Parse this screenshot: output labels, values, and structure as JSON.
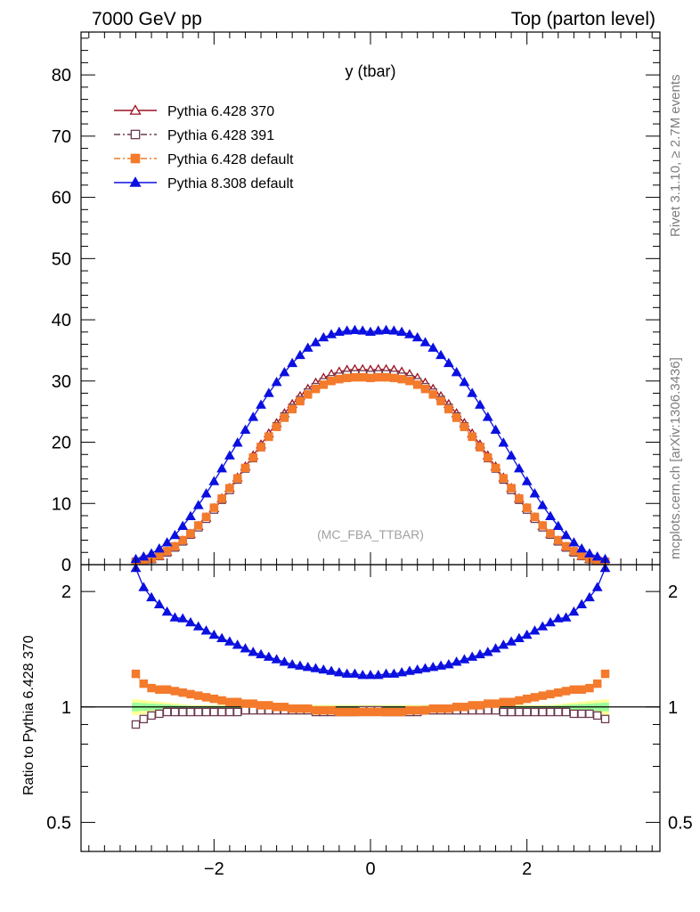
{
  "header": {
    "left_title": "7000 GeV pp",
    "right_title": "Top (parton level)"
  },
  "side_labels": {
    "rivet": "Rivet 3.1.10, ≥ 2.7M events",
    "mcplots": "mcplots.cern.ch [arXiv:1306.3436]"
  },
  "chart_data": [
    {
      "type": "line",
      "title": "y (tbar)",
      "annotation": "(MC_FBA_TTBAR)",
      "xlabel": "",
      "ylabel": "",
      "xlim": [
        -3.7,
        3.7
      ],
      "ylim": [
        0,
        87
      ],
      "x_ticks": [
        "−2",
        "0",
        "2"
      ],
      "y_ticks": [
        "0",
        "10",
        "20",
        "30",
        "40",
        "50",
        "60",
        "70",
        "80"
      ],
      "legend_position": "top-left",
      "x": [
        -3.0,
        -2.9,
        -2.8,
        -2.7,
        -2.6,
        -2.5,
        -2.4,
        -2.3,
        -2.2,
        -2.1,
        -2.0,
        -1.9,
        -1.8,
        -1.7,
        -1.6,
        -1.5,
        -1.4,
        -1.3,
        -1.2,
        -1.1,
        -1.0,
        -0.9,
        -0.8,
        -0.7,
        -0.6,
        -0.5,
        -0.4,
        -0.3,
        -0.2,
        -0.1,
        0.0,
        0.1,
        0.2,
        0.3,
        0.4,
        0.5,
        0.6,
        0.7,
        0.8,
        0.9,
        1.0,
        1.1,
        1.2,
        1.3,
        1.4,
        1.5,
        1.6,
        1.7,
        1.8,
        1.9,
        2.0,
        2.1,
        2.2,
        2.3,
        2.4,
        2.5,
        2.6,
        2.7,
        2.8,
        2.9,
        3.0
      ],
      "series": [
        {
          "name": "Pythia 6.428 370",
          "color": "#9b1020",
          "marker": "open-triangle",
          "line": "solid",
          "values": [
            0.4,
            0.6,
            0.9,
            1.4,
            2.1,
            2.9,
            3.9,
            5.0,
            6.3,
            7.7,
            9.2,
            10.8,
            12.5,
            14.2,
            16.0,
            17.8,
            19.6,
            21.4,
            23.1,
            24.7,
            26.2,
            27.5,
            28.7,
            29.7,
            30.5,
            31.1,
            31.5,
            31.8,
            31.9,
            31.9,
            31.8,
            31.9,
            31.9,
            31.8,
            31.5,
            31.1,
            30.5,
            29.7,
            28.7,
            27.5,
            26.2,
            24.7,
            23.1,
            21.4,
            19.6,
            17.8,
            16.0,
            14.2,
            12.5,
            10.8,
            9.2,
            7.7,
            6.3,
            5.0,
            3.9,
            2.9,
            2.1,
            1.4,
            0.9,
            0.6,
            0.4
          ]
        },
        {
          "name": "Pythia 6.428 391",
          "color": "#6e3a50",
          "marker": "open-square",
          "line": "dash-dot",
          "values": [
            0.4,
            0.6,
            0.9,
            1.4,
            2.0,
            2.8,
            3.8,
            4.9,
            6.1,
            7.5,
            9.0,
            10.6,
            12.2,
            13.9,
            15.7,
            17.4,
            19.2,
            20.9,
            22.6,
            24.2,
            25.6,
            26.9,
            28.1,
            29.0,
            29.8,
            30.3,
            30.7,
            31.0,
            31.1,
            31.1,
            31.0,
            31.1,
            31.1,
            31.0,
            30.7,
            30.3,
            29.8,
            29.0,
            28.1,
            26.9,
            25.6,
            24.2,
            22.6,
            20.9,
            19.2,
            17.4,
            15.7,
            13.9,
            12.2,
            10.6,
            9.0,
            7.5,
            6.1,
            4.9,
            3.8,
            2.8,
            2.0,
            1.4,
            0.9,
            0.6,
            0.4
          ]
        },
        {
          "name": "Pythia 6.428 default",
          "color": "#f47a2c",
          "marker": "filled-square",
          "line": "dash-dot",
          "values": [
            0.5,
            0.7,
            1.0,
            1.5,
            2.2,
            3.0,
            4.0,
            5.1,
            6.4,
            7.8,
            9.3,
            10.8,
            12.5,
            14.1,
            15.8,
            17.5,
            19.2,
            20.9,
            22.5,
            24.0,
            25.4,
            26.7,
            27.8,
            28.7,
            29.4,
            30.0,
            30.3,
            30.5,
            30.6,
            30.6,
            30.5,
            30.6,
            30.6,
            30.5,
            30.3,
            30.0,
            29.4,
            28.7,
            27.8,
            26.7,
            25.4,
            24.0,
            22.5,
            20.9,
            19.2,
            17.5,
            15.8,
            14.1,
            12.5,
            10.8,
            9.3,
            7.8,
            6.4,
            5.1,
            4.0,
            3.0,
            2.2,
            1.5,
            1.0,
            0.7,
            0.5
          ]
        },
        {
          "name": "Pythia 8.308 default",
          "color": "#0b10e0",
          "marker": "filled-triangle",
          "line": "solid",
          "values": [
            0.9,
            1.3,
            1.8,
            2.6,
            3.6,
            4.8,
            6.3,
            7.9,
            9.7,
            11.6,
            13.6,
            15.7,
            17.8,
            19.9,
            22.0,
            24.1,
            26.1,
            28.0,
            29.8,
            31.4,
            32.9,
            34.2,
            35.4,
            36.3,
            37.1,
            37.6,
            38.0,
            38.2,
            38.3,
            38.2,
            38.0,
            38.2,
            38.3,
            38.2,
            38.0,
            37.6,
            37.1,
            36.3,
            35.4,
            34.2,
            32.9,
            31.4,
            29.8,
            28.0,
            26.1,
            24.1,
            22.0,
            19.9,
            17.8,
            15.7,
            13.6,
            11.6,
            9.7,
            7.9,
            6.3,
            4.8,
            3.6,
            2.6,
            1.8,
            1.3,
            0.9
          ]
        }
      ]
    },
    {
      "type": "line",
      "title": "",
      "ylabel": "Ratio to Pythia 6.428 370",
      "xlim": [
        -3.7,
        3.7
      ],
      "ylim": [
        0.42,
        2.35
      ],
      "y_scale": "log",
      "x_ticks": [
        "−2",
        "0",
        "2"
      ],
      "y_ticks": [
        "0.5",
        "1",
        "2"
      ],
      "series": [
        {
          "name": "Pythia 6.428 391",
          "values": [
            0.9,
            0.93,
            0.95,
            0.96,
            0.97,
            0.97,
            0.97,
            0.97,
            0.97,
            0.97,
            0.97,
            0.97,
            0.97,
            0.97,
            0.98,
            0.98,
            0.98,
            0.98,
            0.98,
            0.98,
            0.98,
            0.98,
            0.98,
            0.97,
            0.97,
            0.97,
            0.97,
            0.97,
            0.97,
            0.98,
            0.98,
            0.98,
            0.97,
            0.97,
            0.97,
            0.97,
            0.97,
            0.98,
            0.98,
            0.98,
            0.98,
            0.98,
            0.98,
            0.98,
            0.98,
            0.98,
            0.98,
            0.97,
            0.97,
            0.97,
            0.97,
            0.97,
            0.97,
            0.97,
            0.97,
            0.97,
            0.96,
            0.96,
            0.96,
            0.95,
            0.93
          ]
        },
        {
          "name": "Pythia 6.428 default",
          "values": [
            1.22,
            1.15,
            1.12,
            1.11,
            1.11,
            1.1,
            1.09,
            1.08,
            1.07,
            1.06,
            1.05,
            1.04,
            1.03,
            1.03,
            1.02,
            1.02,
            1.01,
            1.01,
            1.0,
            1.0,
            0.99,
            0.99,
            0.99,
            0.98,
            0.98,
            0.98,
            0.97,
            0.97,
            0.97,
            0.97,
            0.97,
            0.97,
            0.97,
            0.97,
            0.97,
            0.98,
            0.98,
            0.98,
            0.99,
            0.99,
            0.99,
            1.0,
            1.0,
            1.01,
            1.01,
            1.02,
            1.02,
            1.03,
            1.03,
            1.04,
            1.05,
            1.06,
            1.07,
            1.08,
            1.09,
            1.1,
            1.11,
            1.11,
            1.12,
            1.15,
            1.22
          ]
        },
        {
          "name": "Pythia 8.308 default",
          "values": [
            2.3,
            2.05,
            1.93,
            1.85,
            1.77,
            1.71,
            1.7,
            1.66,
            1.62,
            1.58,
            1.54,
            1.51,
            1.48,
            1.45,
            1.42,
            1.39,
            1.37,
            1.35,
            1.33,
            1.31,
            1.29,
            1.28,
            1.27,
            1.26,
            1.25,
            1.24,
            1.23,
            1.22,
            1.22,
            1.21,
            1.21,
            1.21,
            1.22,
            1.22,
            1.23,
            1.24,
            1.25,
            1.26,
            1.27,
            1.28,
            1.29,
            1.31,
            1.33,
            1.35,
            1.37,
            1.39,
            1.42,
            1.45,
            1.48,
            1.51,
            1.54,
            1.58,
            1.62,
            1.66,
            1.7,
            1.71,
            1.77,
            1.85,
            1.93,
            2.05,
            2.3
          ]
        }
      ]
    }
  ]
}
